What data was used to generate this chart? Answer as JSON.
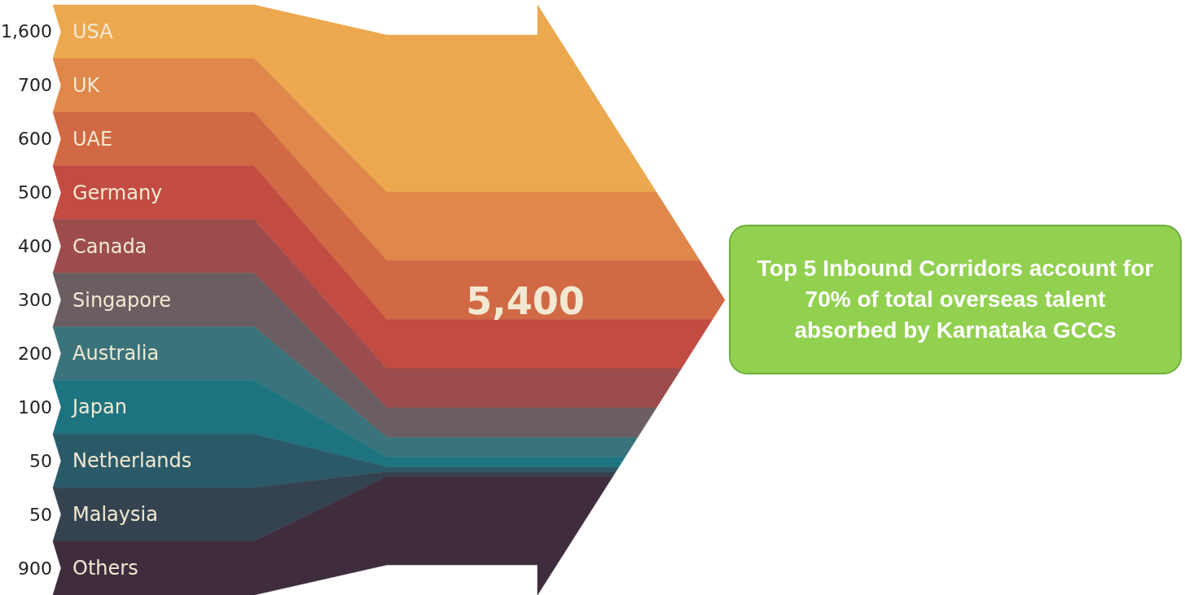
{
  "chart_data": {
    "type": "other",
    "categories": [
      "USA",
      "UK",
      "UAE",
      "Germany",
      "Canada",
      "Singapore",
      "Australia",
      "Japan",
      "Netherlands",
      "Malaysia",
      "Others"
    ],
    "values": [
      1600,
      700,
      600,
      500,
      400,
      300,
      200,
      100,
      50,
      50,
      900
    ],
    "value_labels": [
      "1,600",
      "700",
      "600",
      "500",
      "400",
      "300",
      "200",
      "100",
      "50",
      "50",
      "900"
    ],
    "colors": [
      "#eca84e",
      "#e0874a",
      "#d06944",
      "#c24c41",
      "#9c4c4d",
      "#6b5e63",
      "#3a737b",
      "#1d7480",
      "#2a5a68",
      "#34434f",
      "#3f2d3e"
    ],
    "annotations": [
      "5,400",
      "Top 5 Inbound Corridors account for 70% of total overseas talent absorbed by Karnataka GCCs"
    ]
  }
}
